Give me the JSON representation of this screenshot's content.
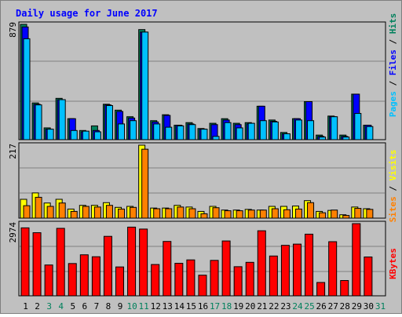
{
  "title": "Daily usage for June 2017",
  "colors": {
    "title": "#0000ff",
    "background": "#c0c0c0",
    "panel": "#c0c0c0",
    "grid": "#808080",
    "hits": "#00805c",
    "files": "#0000ff",
    "pages": "#00c0ff",
    "visits": "#ffff00",
    "sites": "#ff8000",
    "kbytes": "#ff0000",
    "weekend_label": "#00805c",
    "day_label": "#000000"
  },
  "axis_labels": {
    "top_max": "879",
    "mid_max": "217",
    "bottom_max": "2974"
  },
  "legend": {
    "pages": "Pages",
    "files": "Files",
    "hits": "Hits",
    "sites": "Sites",
    "visits": "Visits",
    "kbytes": "KBytes",
    "sep": " / "
  },
  "chart_data": {
    "type": "bar",
    "title": "Daily usage for June 2017",
    "categories": [
      "1",
      "2",
      "3",
      "4",
      "5",
      "6",
      "7",
      "8",
      "9",
      "10",
      "11",
      "12",
      "13",
      "14",
      "15",
      "16",
      "17",
      "18",
      "19",
      "20",
      "21",
      "22",
      "23",
      "24",
      "25",
      "26",
      "27",
      "28",
      "29",
      "30",
      "31"
    ],
    "weekend_days": [
      "3",
      "4",
      "10",
      "11",
      "17",
      "18",
      "24",
      "25",
      "31"
    ],
    "panels": [
      {
        "name": "hits-files-pages",
        "ylim": [
          0,
          879
        ],
        "tick_label": "879",
        "series": [
          {
            "name": "Hits",
            "values": [
              879,
              280,
              90,
              315,
              160,
              70,
              105,
              270,
              225,
              175,
              839,
              145,
              190,
              110,
              130,
              85,
              125,
              160,
              125,
              130,
              255,
              150,
              55,
              160,
              290,
              35,
              180,
              35,
              347,
              110,
              0
            ]
          },
          {
            "name": "Files",
            "values": [
              859,
              270,
              80,
              305,
              160,
              60,
              70,
              265,
              215,
              165,
              820,
              135,
              185,
              110,
              120,
              80,
              115,
              150,
              115,
              120,
              255,
              140,
              45,
              160,
              290,
              25,
              175,
              25,
              347,
              110,
              0
            ]
          },
          {
            "name": "Pages",
            "values": [
              769,
              265,
              80,
              305,
              70,
              65,
              60,
              260,
              120,
              145,
              820,
              120,
              95,
              105,
              115,
              80,
              25,
              130,
              90,
              125,
              145,
              135,
              45,
              150,
              145,
              20,
              175,
              20,
              200,
              100,
              0
            ]
          }
        ]
      },
      {
        "name": "visits-sites",
        "ylim": [
          0,
          217
        ],
        "tick_label": "217",
        "series": [
          {
            "name": "Visits",
            "values": [
              56,
              75,
              45,
              56,
              27,
              38,
              38,
              46,
              32,
              35,
              217,
              30,
              30,
              38,
              33,
              20,
              35,
              24,
              24,
              26,
              24,
              35,
              35,
              36,
              52,
              20,
              23,
              10,
              33,
              28,
              0
            ]
          },
          {
            "name": "Sites",
            "values": [
              37,
              62,
              35,
              45,
              20,
              35,
              33,
              38,
              27,
              32,
              205,
              28,
              28,
              33,
              28,
              13,
              31,
              22,
              22,
              24,
              24,
              28,
              25,
              27,
              46,
              16,
              24,
              8,
              29,
              26,
              0
            ]
          }
        ]
      },
      {
        "name": "kbytes",
        "ylim": [
          0,
          2974
        ],
        "tick_label": "2974",
        "series": [
          {
            "name": "KBytes",
            "values": [
              2800,
              2600,
              1270,
              2780,
              1330,
              1690,
              1610,
              2450,
              1190,
              2830,
              2750,
              1290,
              2240,
              1340,
              1480,
              850,
              1460,
              2260,
              1200,
              1380,
              2680,
              1640,
              2080,
              2130,
              2540,
              550,
              2230,
              630,
              2974,
              1600,
              0
            ]
          }
        ]
      }
    ]
  }
}
